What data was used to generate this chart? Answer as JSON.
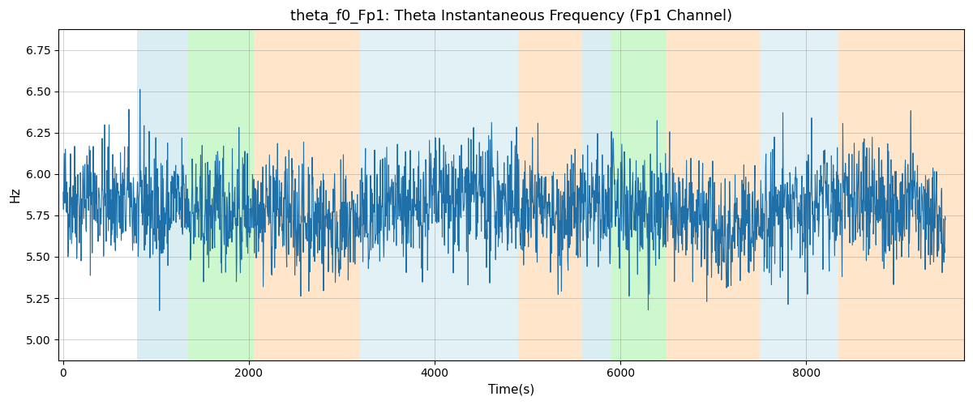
{
  "title": "theta_f0_Fp1: Theta Instantaneous Frequency (Fp1 Channel)",
  "xlabel": "Time(s)",
  "ylabel": "Hz",
  "ylim": [
    4.875,
    6.875
  ],
  "xlim": [
    -50,
    9700
  ],
  "seed": 42,
  "n_points": 2400,
  "mean_freq": 5.78,
  "std_freq": 0.18,
  "colored_bands": [
    {
      "xmin": 800,
      "xmax": 1350,
      "color": "#add8e6",
      "alpha": 0.45
    },
    {
      "xmin": 1350,
      "xmax": 2050,
      "color": "#90ee90",
      "alpha": 0.45
    },
    {
      "xmin": 2050,
      "xmax": 3200,
      "color": "#ffd0a0",
      "alpha": 0.55
    },
    {
      "xmin": 3200,
      "xmax": 4900,
      "color": "#add8e6",
      "alpha": 0.35
    },
    {
      "xmin": 4900,
      "xmax": 5580,
      "color": "#ffd0a0",
      "alpha": 0.55
    },
    {
      "xmin": 5580,
      "xmax": 5900,
      "color": "#add8e6",
      "alpha": 0.45
    },
    {
      "xmin": 5900,
      "xmax": 6500,
      "color": "#90ee90",
      "alpha": 0.45
    },
    {
      "xmin": 6500,
      "xmax": 7500,
      "color": "#ffd0a0",
      "alpha": 0.55
    },
    {
      "xmin": 7500,
      "xmax": 8350,
      "color": "#add8e6",
      "alpha": 0.35
    },
    {
      "xmin": 8350,
      "xmax": 9700,
      "color": "#ffd0a0",
      "alpha": 0.55
    }
  ],
  "line_color": "#1f6fa8",
  "line_width": 0.8,
  "grid_color": "gray",
  "grid_alpha": 0.4,
  "grid_linewidth": 0.6,
  "bg_color": "white",
  "title_fontsize": 13,
  "axis_label_fontsize": 11,
  "xticks": [
    0,
    2000,
    4000,
    6000,
    8000
  ],
  "yticks": [
    5.0,
    5.25,
    5.5,
    5.75,
    6.0,
    6.25,
    6.5,
    6.75
  ]
}
